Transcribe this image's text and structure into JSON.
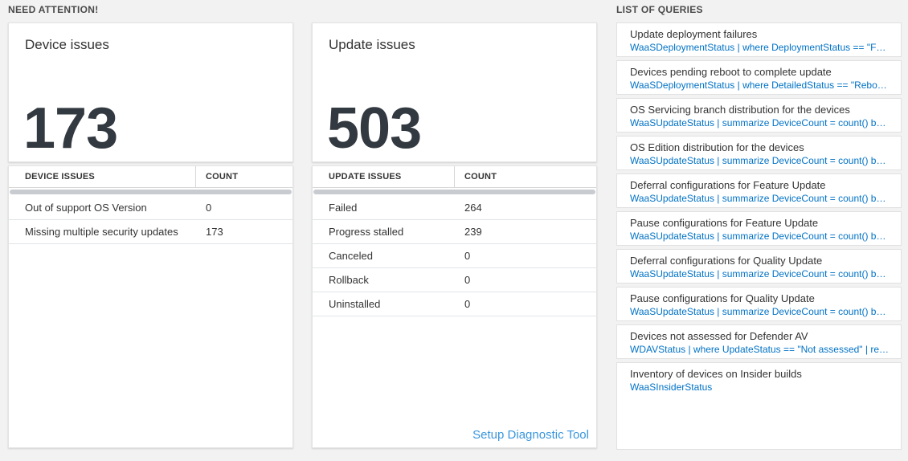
{
  "colors": {
    "page_background": "#f2f2f2",
    "query_link_blue": "#0072c6",
    "footer_link_blue": "#3a96dd",
    "big_number_color": "#333940",
    "scrollbar_gray": "#c8ccd1"
  },
  "need_attention": {
    "header": "NEED ATTENTION!",
    "device_widget": {
      "title": "Device issues",
      "big_number": "173",
      "table": {
        "col_issue": "DEVICE ISSUES",
        "col_count": "COUNT",
        "rows": [
          {
            "label": "Out of support OS Version",
            "count": "0"
          },
          {
            "label": "Missing multiple security updates",
            "count": "173"
          }
        ]
      }
    },
    "update_widget": {
      "title": "Update issues",
      "big_number": "503",
      "table": {
        "col_issue": "UPDATE ISSUES",
        "col_count": "COUNT",
        "rows": [
          {
            "label": "Failed",
            "count": "264"
          },
          {
            "label": "Progress stalled",
            "count": "239"
          },
          {
            "label": "Canceled",
            "count": "0"
          },
          {
            "label": "Rollback",
            "count": "0"
          },
          {
            "label": "Uninstalled",
            "count": "0"
          }
        ]
      },
      "footer_link": "Setup Diagnostic Tool"
    }
  },
  "queries": {
    "header": "LIST OF QUERIES",
    "items": [
      {
        "title": "Update deployment failures",
        "query": "WaaSDeploymentStatus | where DeploymentStatus == \"Failed\" |..."
      },
      {
        "title": "Devices pending reboot to complete update",
        "query": "WaaSDeploymentStatus | where DetailedStatus == \"Reboot pend..."
      },
      {
        "title": "OS Servicing branch distribution for the devices",
        "query": "WaaSUpdateStatus | summarize DeviceCount = count() by OSSer..."
      },
      {
        "title": "OS Edition distribution for the devices",
        "query": "WaaSUpdateStatus | summarize DeviceCount = count() by OSEdit..."
      },
      {
        "title": "Deferral configurations for Feature Update",
        "query": "WaaSUpdateStatus | summarize DeviceCount = count() by Featur..."
      },
      {
        "title": "Pause configurations for Feature Update",
        "query": "WaaSUpdateStatus | summarize DeviceCount = count() by Featur..."
      },
      {
        "title": "Deferral configurations for Quality Update",
        "query": "WaaSUpdateStatus | summarize DeviceCount = count() by Qualit..."
      },
      {
        "title": "Pause configurations for Quality Update",
        "query": "WaaSUpdateStatus | summarize DeviceCount = count() by Qualit..."
      },
      {
        "title": "Devices not assessed for Defender AV",
        "query": "WDAVStatus | where UpdateStatus == \"Not assessed\" | render ta..."
      },
      {
        "title": "Inventory of devices on Insider builds",
        "query": "WaaSInsiderStatus"
      }
    ]
  }
}
